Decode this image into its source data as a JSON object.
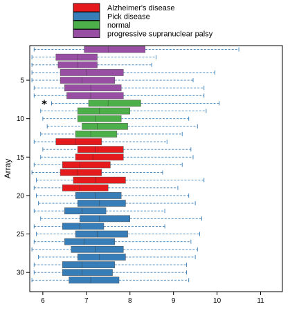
{
  "chart_data": {
    "type": "boxplot",
    "orientation": "horizontal",
    "title": "",
    "xlabel": "",
    "ylabel": "Array",
    "xlim": [
      5.7,
      11.5
    ],
    "ylim": [
      0.5,
      32.5
    ],
    "x_ticks": [
      6,
      7,
      8,
      9,
      10,
      11
    ],
    "y_ticks": [
      5,
      10,
      15,
      20,
      25,
      30
    ],
    "grid": false,
    "legend_position": "top",
    "legend": [
      {
        "name": "Alzheimer's disease",
        "color": "#e41a1c"
      },
      {
        "name": "Pick disease",
        "color": "#377eb8"
      },
      {
        "name": "normal",
        "color": "#4daf4a"
      },
      {
        "name": "progressive supranuclear palsy",
        "color": "#984ea3"
      }
    ],
    "whisker_color": "#377eb8",
    "annotation": {
      "text": "*",
      "array": 8
    },
    "boxes": [
      {
        "array": 1,
        "group": 3,
        "whisker_low": 5.8,
        "q1": 6.95,
        "median": 7.5,
        "q3": 8.35,
        "whisker_high": 10.5
      },
      {
        "array": 2,
        "group": 3,
        "whisker_low": 5.75,
        "q1": 6.3,
        "median": 6.8,
        "q3": 7.25,
        "whisker_high": 8.6
      },
      {
        "array": 3,
        "group": 3,
        "whisker_low": 5.75,
        "q1": 6.35,
        "median": 6.8,
        "q3": 7.25,
        "whisker_high": 8.5
      },
      {
        "array": 4,
        "group": 3,
        "whisker_low": 5.75,
        "q1": 6.4,
        "median": 7.0,
        "q3": 7.85,
        "whisker_high": 9.95
      },
      {
        "array": 5,
        "group": 3,
        "whisker_low": 5.75,
        "q1": 6.4,
        "median": 6.9,
        "q3": 7.65,
        "whisker_high": 9.45
      },
      {
        "array": 6,
        "group": 3,
        "whisker_low": 5.8,
        "q1": 6.5,
        "median": 7.1,
        "q3": 7.8,
        "whisker_high": 9.7
      },
      {
        "array": 7,
        "group": 3,
        "whisker_low": 5.8,
        "q1": 6.55,
        "median": 7.1,
        "q3": 7.85,
        "whisker_high": 9.7
      },
      {
        "array": 8,
        "group": 2,
        "whisker_low": 6.2,
        "q1": 7.05,
        "median": 7.5,
        "q3": 8.25,
        "whisker_high": 10.05
      },
      {
        "array": 9,
        "group": 2,
        "whisker_low": 5.95,
        "q1": 6.8,
        "median": 7.3,
        "q3": 8.0,
        "whisker_high": 9.75
      },
      {
        "array": 10,
        "group": 2,
        "whisker_low": 6.0,
        "q1": 6.8,
        "median": 7.2,
        "q3": 7.8,
        "whisker_high": 9.35
      },
      {
        "array": 11,
        "group": 2,
        "whisker_low": 6.1,
        "q1": 6.9,
        "median": 7.25,
        "q3": 7.95,
        "whisker_high": 9.55
      },
      {
        "array": 12,
        "group": 2,
        "whisker_low": 5.95,
        "q1": 6.75,
        "median": 7.1,
        "q3": 7.7,
        "whisker_high": 9.2
      },
      {
        "array": 13,
        "group": 0,
        "whisker_low": 5.8,
        "q1": 6.3,
        "median": 6.75,
        "q3": 7.35,
        "whisker_high": 8.85
      },
      {
        "array": 14,
        "group": 0,
        "whisker_low": 6.0,
        "q1": 6.8,
        "median": 7.2,
        "q3": 7.85,
        "whisker_high": 9.4
      },
      {
        "array": 15,
        "group": 0,
        "whisker_low": 5.95,
        "q1": 6.75,
        "median": 7.15,
        "q3": 7.85,
        "whisker_high": 9.45
      },
      {
        "array": 16,
        "group": 0,
        "whisker_low": 5.8,
        "q1": 6.45,
        "median": 6.85,
        "q3": 7.55,
        "whisker_high": 9.2
      },
      {
        "array": 17,
        "group": 0,
        "whisker_low": 5.75,
        "q1": 6.4,
        "median": 6.8,
        "q3": 7.35,
        "whisker_high": 8.75
      },
      {
        "array": 18,
        "group": 0,
        "whisker_low": 5.85,
        "q1": 6.7,
        "median": 7.2,
        "q3": 7.9,
        "whisker_high": 9.7
      },
      {
        "array": 19,
        "group": 0,
        "whisker_low": 5.8,
        "q1": 6.45,
        "median": 6.85,
        "q3": 7.5,
        "whisker_high": 9.1
      },
      {
        "array": 20,
        "group": 1,
        "whisker_low": 5.85,
        "q1": 6.75,
        "median": 7.2,
        "q3": 7.8,
        "whisker_high": 9.35
      },
      {
        "array": 21,
        "group": 1,
        "whisker_low": 5.9,
        "q1": 6.8,
        "median": 7.3,
        "q3": 7.9,
        "whisker_high": 9.5
      },
      {
        "array": 22,
        "group": 1,
        "whisker_low": 5.8,
        "q1": 6.5,
        "median": 6.9,
        "q3": 7.45,
        "whisker_high": 8.8
      },
      {
        "array": 23,
        "group": 1,
        "whisker_low": 5.95,
        "q1": 6.85,
        "median": 7.3,
        "q3": 8.0,
        "whisker_high": 9.65
      },
      {
        "array": 24,
        "group": 1,
        "whisker_low": 5.8,
        "q1": 6.45,
        "median": 6.85,
        "q3": 7.4,
        "whisker_high": 8.8
      },
      {
        "array": 25,
        "group": 1,
        "whisker_low": 5.85,
        "q1": 6.75,
        "median": 7.25,
        "q3": 7.95,
        "whisker_high": 9.6
      },
      {
        "array": 26,
        "group": 1,
        "whisker_low": 5.8,
        "q1": 6.5,
        "median": 6.95,
        "q3": 7.65,
        "whisker_high": 9.4
      },
      {
        "array": 27,
        "group": 1,
        "whisker_low": 5.75,
        "q1": 6.65,
        "median": 7.2,
        "q3": 7.85,
        "whisker_high": 9.55
      },
      {
        "array": 28,
        "group": 1,
        "whisker_low": 5.9,
        "q1": 6.8,
        "median": 7.3,
        "q3": 7.9,
        "whisker_high": 9.5
      },
      {
        "array": 29,
        "group": 1,
        "whisker_low": 5.8,
        "q1": 6.45,
        "median": 6.9,
        "q3": 7.65,
        "whisker_high": 9.3
      },
      {
        "array": 30,
        "group": 1,
        "whisker_low": 5.8,
        "q1": 6.45,
        "median": 6.9,
        "q3": 7.6,
        "whisker_high": 9.3
      },
      {
        "array": 31,
        "group": 1,
        "whisker_low": 5.75,
        "q1": 6.6,
        "median": 7.1,
        "q3": 7.75,
        "whisker_high": 9.35
      }
    ]
  }
}
